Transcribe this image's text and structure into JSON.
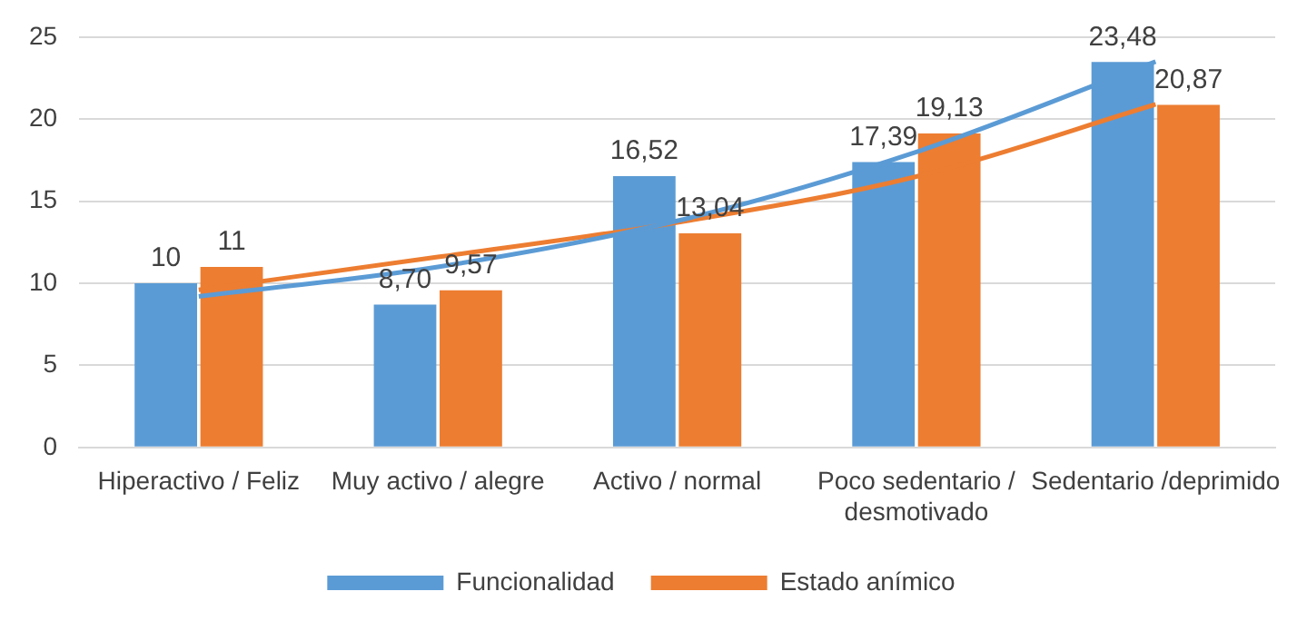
{
  "chart_data": {
    "type": "bar",
    "categories": [
      "Hiperactivo / Feliz",
      "Muy activo / alegre",
      "Activo / normal",
      "Poco sedentario / desmotivado",
      "Sedentario /deprimido"
    ],
    "series": [
      {
        "name": "Funcionalidad",
        "color": "#5b9bd5",
        "values": [
          10,
          8.7,
          16.52,
          17.39,
          23.48
        ],
        "value_labels": [
          "10",
          "8,70",
          "16,52",
          "17,39",
          "23,48"
        ]
      },
      {
        "name": "Estado anímico",
        "color": "#ed7d31",
        "values": [
          11,
          9.57,
          13.04,
          19.13,
          20.87
        ],
        "value_labels": [
          "11",
          "9,57",
          "13,04",
          "19,13",
          "20,87"
        ]
      },
      {
        "type": "line",
        "color": "#5b9bd5",
        "values": [
          9.2,
          11.0,
          13.8,
          18.0,
          23.5
        ]
      },
      {
        "type": "line",
        "color": "#ed7d31",
        "values": [
          9.6,
          11.6,
          13.7,
          16.5,
          20.9
        ]
      }
    ],
    "ylim": [
      0,
      25
    ],
    "yticks": [
      0,
      5,
      10,
      15,
      20,
      25
    ],
    "grid": "y",
    "legend": "bottom",
    "marker": "none"
  }
}
